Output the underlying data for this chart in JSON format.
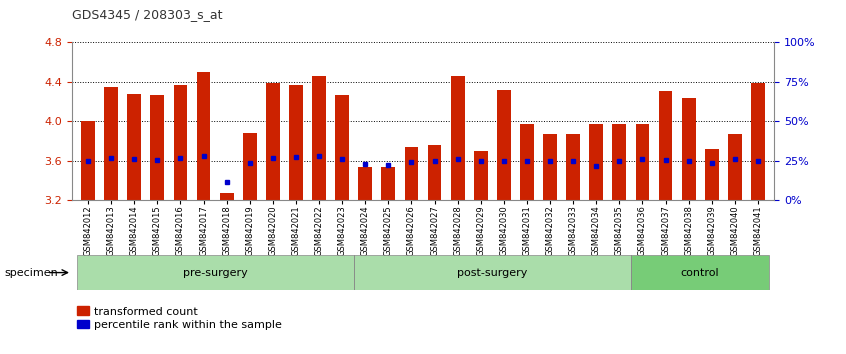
{
  "title": "GDS4345 / 208303_s_at",
  "samples": [
    "GSM842012",
    "GSM842013",
    "GSM842014",
    "GSM842015",
    "GSM842016",
    "GSM842017",
    "GSM842018",
    "GSM842019",
    "GSM842020",
    "GSM842021",
    "GSM842022",
    "GSM842023",
    "GSM842024",
    "GSM842025",
    "GSM842026",
    "GSM842027",
    "GSM842028",
    "GSM842029",
    "GSM842030",
    "GSM842031",
    "GSM842032",
    "GSM842033",
    "GSM842034",
    "GSM842035",
    "GSM842036",
    "GSM842037",
    "GSM842038",
    "GSM842039",
    "GSM842040",
    "GSM842041"
  ],
  "red_values": [
    4.0,
    4.35,
    4.28,
    4.27,
    4.37,
    4.5,
    3.27,
    3.88,
    4.39,
    4.37,
    4.46,
    4.27,
    3.54,
    3.54,
    3.74,
    3.76,
    4.46,
    3.7,
    4.32,
    3.97,
    3.87,
    3.87,
    3.97,
    3.97,
    3.97,
    4.31,
    4.24,
    3.72,
    3.87,
    4.39
  ],
  "blue_values": [
    3.6,
    3.63,
    3.62,
    3.61,
    3.63,
    3.65,
    3.38,
    3.58,
    3.63,
    3.64,
    3.65,
    3.62,
    3.57,
    3.56,
    3.59,
    3.6,
    3.62,
    3.6,
    3.6,
    3.6,
    3.6,
    3.6,
    3.55,
    3.6,
    3.62,
    3.61,
    3.6,
    3.58,
    3.62,
    3.6
  ],
  "groups": [
    {
      "label": "pre-surgery",
      "start": 0,
      "end": 12,
      "color": "#aaddaa"
    },
    {
      "label": "post-surgery",
      "start": 12,
      "end": 24,
      "color": "#aaddaa"
    },
    {
      "label": "control",
      "start": 24,
      "end": 30,
      "color": "#77cc77"
    }
  ],
  "ylim": [
    3.2,
    4.8
  ],
  "yticks": [
    3.2,
    3.6,
    4.0,
    4.4,
    4.8
  ],
  "y2ticks": [
    0,
    25,
    50,
    75,
    100
  ],
  "bar_color": "#CC2200",
  "dot_color": "#0000CC",
  "bar_width": 0.6
}
